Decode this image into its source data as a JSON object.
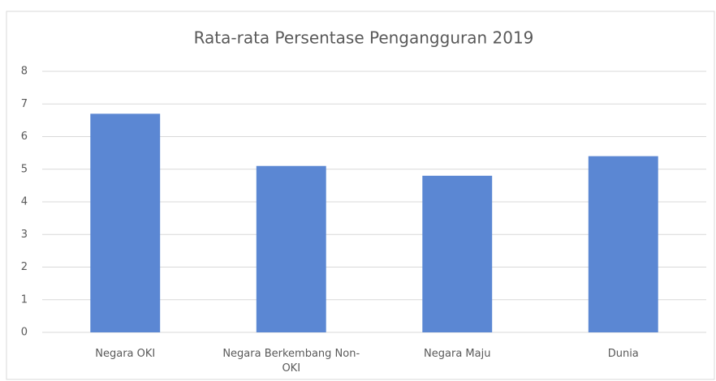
{
  "chart_data": {
    "type": "bar",
    "title": "Rata-rata Persentase Pengangguran 2019",
    "categories": [
      "Negara OKI",
      "Negara Berkembang Non-OKI",
      "Negara Maju",
      "Dunia"
    ],
    "values": [
      6.7,
      5.1,
      4.8,
      5.4
    ],
    "color": "#5b87d3",
    "ylim": [
      0,
      8
    ],
    "yticks": [
      0,
      1,
      2,
      3,
      4,
      5,
      6,
      7,
      8
    ],
    "grid": true
  }
}
